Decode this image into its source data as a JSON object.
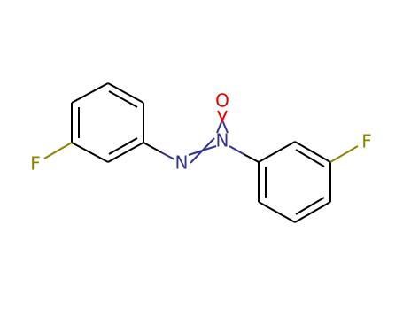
{
  "atoms": [
    {
      "label": "F"
    },
    {
      "label": "N"
    },
    {
      "label": "N"
    },
    {
      "label": "O"
    },
    {
      "label": "F"
    }
  ]
}
